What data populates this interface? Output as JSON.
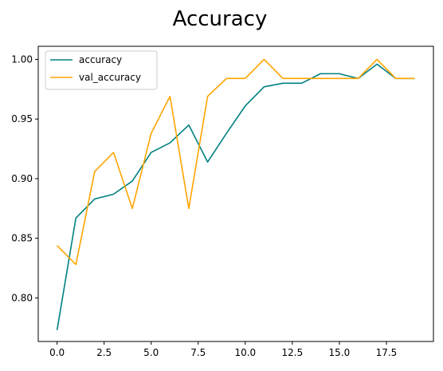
{
  "chart_data": {
    "type": "line",
    "title": "Accuracy",
    "xlabel": "",
    "ylabel": "",
    "xlim": [
      -1.0,
      20.0
    ],
    "ylim": [
      0.7635,
      1.011
    ],
    "grid": false,
    "legend_position": "top-left",
    "x_ticks": [
      0.0,
      2.5,
      5.0,
      7.5,
      10.0,
      12.5,
      15.0,
      17.5
    ],
    "x_tick_labels": [
      "0.0",
      "2.5",
      "5.0",
      "7.5",
      "10.0",
      "12.5",
      "15.0",
      "17.5"
    ],
    "y_ticks": [
      0.8,
      0.85,
      0.9,
      0.95,
      1.0
    ],
    "y_tick_labels": [
      "0.80",
      "0.85",
      "0.90",
      "0.95",
      "1.00"
    ],
    "x": [
      0,
      1,
      2,
      3,
      4,
      5,
      6,
      7,
      8,
      9,
      10,
      11,
      12,
      13,
      14,
      15,
      16,
      17,
      18,
      19
    ],
    "series": [
      {
        "name": "accuracy",
        "color": "#008080",
        "values": [
          0.773,
          0.867,
          0.883,
          0.887,
          0.898,
          0.922,
          0.93,
          0.945,
          0.914,
          0.938,
          0.961,
          0.977,
          0.98,
          0.98,
          0.988,
          0.988,
          0.984,
          0.996,
          0.984,
          0.984
        ]
      },
      {
        "name": "val_accuracy",
        "color": "#ffa500",
        "values": [
          0.844,
          0.828,
          0.906,
          0.922,
          0.875,
          0.938,
          0.969,
          0.875,
          0.969,
          0.984,
          0.984,
          1.0,
          0.984,
          0.984,
          0.984,
          0.984,
          0.984,
          1.0,
          0.984,
          0.984
        ]
      }
    ]
  }
}
